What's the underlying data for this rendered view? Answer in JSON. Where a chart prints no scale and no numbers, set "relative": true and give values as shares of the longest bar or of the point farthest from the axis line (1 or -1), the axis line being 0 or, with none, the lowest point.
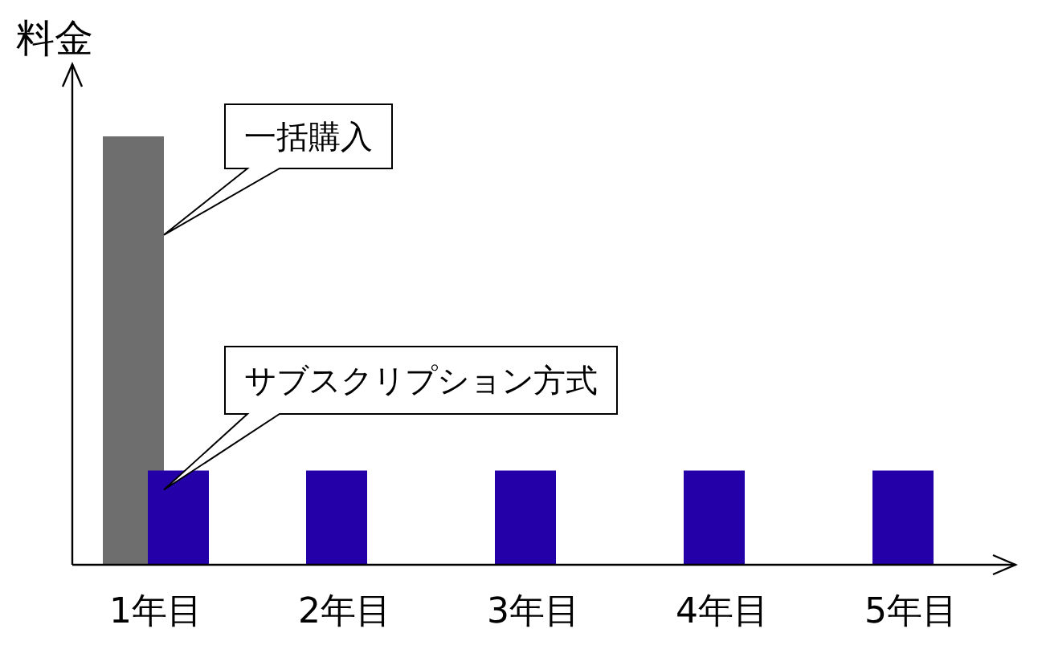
{
  "chart_data": {
    "type": "bar",
    "relative": true,
    "ylabel": "料金",
    "categories": [
      "1年目",
      "2年目",
      "3年目",
      "4年目",
      "5年目"
    ],
    "series": [
      {
        "name": "一括購入",
        "color": "#6e6e6e",
        "values": [
          1,
          null,
          null,
          null,
          null
        ]
      },
      {
        "name": "サブスクリプション方式",
        "color": "#2300a8",
        "values": [
          0.22,
          0.22,
          0.22,
          0.22,
          0.22
        ]
      }
    ]
  }
}
